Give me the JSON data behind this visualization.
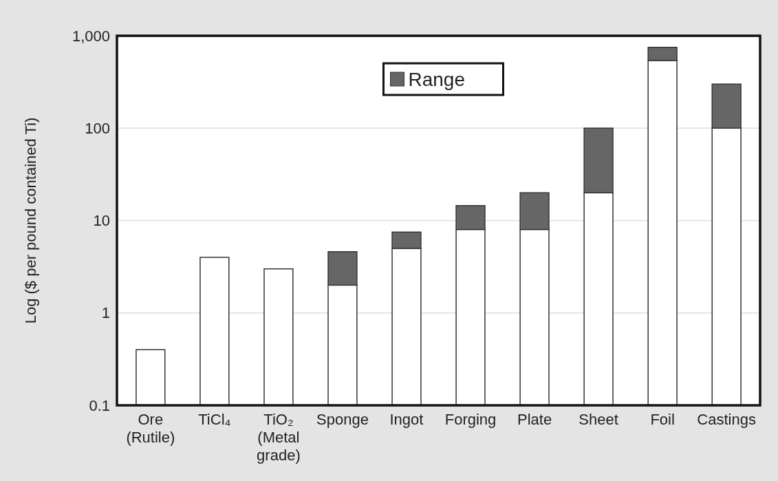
{
  "chart_data": {
    "type": "bar",
    "ylabel": "Log ($ per pound contained Ti)",
    "categories": [
      "Ore (Rutile)",
      "TiCl₄",
      "TiO₂ (Metal grade)",
      "Sponge",
      "Ingot",
      "Forging",
      "Plate",
      "Sheet",
      "Foil",
      "Castings"
    ],
    "stacked": true,
    "log": "y",
    "ylim": [
      0.1,
      1000
    ],
    "yticks": [
      0.1,
      1,
      10,
      100,
      {
        "value": 1000,
        "label": "1,000"
      }
    ],
    "grid": "y",
    "legend": "top",
    "series": [
      {
        "color": "#ffffff",
        "values": [
          0.4,
          4,
          3,
          2,
          5,
          8,
          8,
          20,
          540,
          100
        ]
      },
      {
        "name": "Range",
        "color": "#666666",
        "values": [
          null,
          null,
          null,
          2.6,
          2.5,
          6.5,
          12,
          80,
          210,
          200
        ]
      }
    ]
  }
}
